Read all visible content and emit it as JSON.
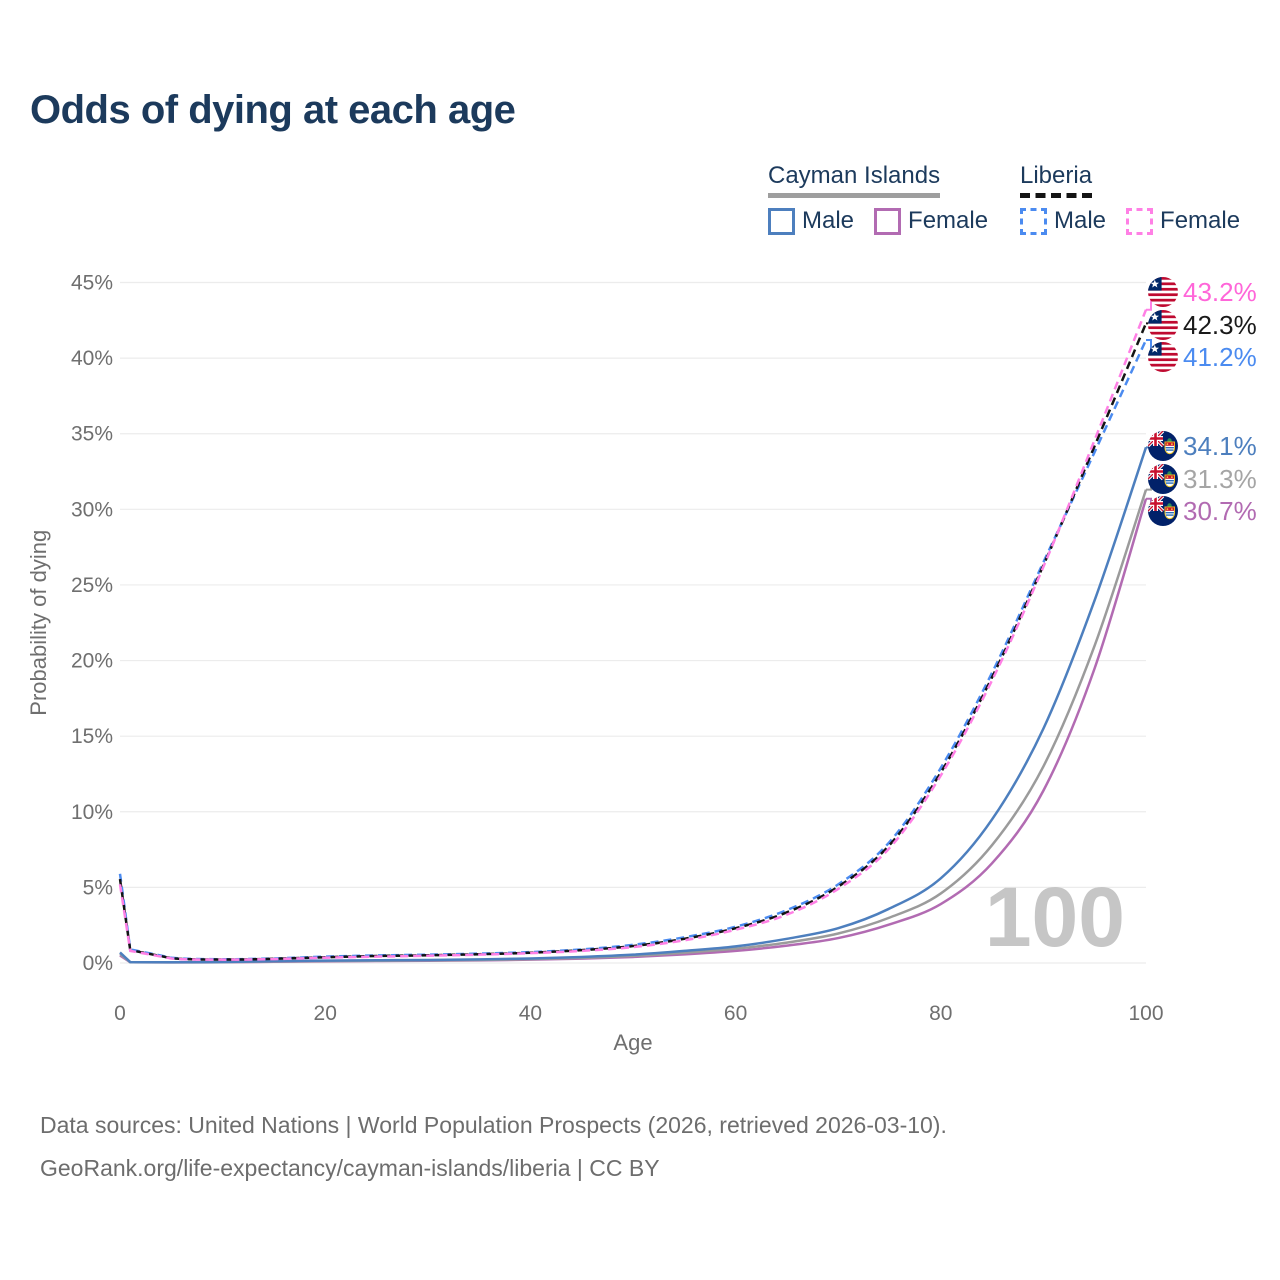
{
  "title": "Odds of dying at each age",
  "legend": {
    "groups": [
      {
        "label": "Cayman Islands",
        "line_style": "solid",
        "line_color": "#9e9e9e",
        "items": [
          {
            "label": "Male",
            "color": "#4d7fbe"
          },
          {
            "label": "Female",
            "color": "#b26bb2"
          }
        ]
      },
      {
        "label": "Liberia",
        "line_style": "dashed",
        "line_color": "#141414",
        "items": [
          {
            "label": "Male",
            "color": "#4b8bf0"
          },
          {
            "label": "Female",
            "color": "#ff80e5"
          }
        ]
      }
    ]
  },
  "chart_data": {
    "type": "line",
    "title": "Odds of dying at each age",
    "xlabel": "Age",
    "ylabel": "Probability of dying",
    "xlim": [
      0,
      100
    ],
    "ylim": [
      0,
      45
    ],
    "x_ticks": [
      0,
      20,
      40,
      60,
      80,
      100
    ],
    "y_tick_values": [
      0,
      5,
      10,
      15,
      20,
      25,
      30,
      35,
      40,
      45
    ],
    "y_tick_labels": [
      "0%",
      "5%",
      "10%",
      "15%",
      "20%",
      "25%",
      "30%",
      "35%",
      "40%",
      "45%"
    ],
    "grid": "horizontal",
    "legend_position": "top-right",
    "watermark_age": "100",
    "ages": [
      0,
      1,
      5,
      10,
      15,
      20,
      25,
      30,
      35,
      40,
      45,
      50,
      55,
      60,
      65,
      70,
      75,
      80,
      85,
      90,
      95,
      100
    ],
    "series": [
      {
        "name": "Cayman Islands Female",
        "country": "Cayman Islands",
        "sex": "Female",
        "color": "#b26bb2",
        "dashed": false,
        "values": [
          0.5,
          0.05,
          0.04,
          0.05,
          0.08,
          0.11,
          0.13,
          0.15,
          0.17,
          0.22,
          0.29,
          0.4,
          0.57,
          0.8,
          1.15,
          1.65,
          2.55,
          3.9,
          6.6,
          11.4,
          19.5,
          30.7
        ],
        "end_label": "30.7%"
      },
      {
        "name": "Cayman Islands Both sexes",
        "country": "Cayman Islands",
        "sex": "Both",
        "color": "#9b9b9b",
        "dashed": false,
        "values": [
          0.6,
          0.05,
          0.04,
          0.06,
          0.1,
          0.13,
          0.15,
          0.17,
          0.2,
          0.26,
          0.34,
          0.47,
          0.68,
          0.95,
          1.35,
          1.95,
          3.0,
          4.6,
          7.8,
          13.0,
          21.0,
          31.3
        ],
        "end_label": "31.3%"
      },
      {
        "name": "Cayman Islands Male",
        "country": "Cayman Islands",
        "sex": "Male",
        "color": "#4d7fbe",
        "dashed": false,
        "values": [
          0.7,
          0.06,
          0.05,
          0.07,
          0.12,
          0.16,
          0.18,
          0.2,
          0.24,
          0.3,
          0.4,
          0.55,
          0.8,
          1.1,
          1.6,
          2.3,
          3.6,
          5.6,
          9.5,
          15.5,
          24.0,
          34.1
        ],
        "end_label": "34.1%"
      },
      {
        "name": "Liberia Male",
        "country": "Liberia",
        "sex": "Male",
        "color": "#4b8bf0",
        "dashed": true,
        "values": [
          5.9,
          0.9,
          0.35,
          0.25,
          0.3,
          0.42,
          0.5,
          0.55,
          0.62,
          0.72,
          0.9,
          1.2,
          1.7,
          2.4,
          3.5,
          5.2,
          8.0,
          12.9,
          19.2,
          26.5,
          33.8,
          41.2
        ],
        "end_label": "41.2%"
      },
      {
        "name": "Liberia Both sexes",
        "country": "Liberia",
        "sex": "Both",
        "color": "#141414",
        "dashed": true,
        "values": [
          5.55,
          0.85,
          0.32,
          0.23,
          0.28,
          0.38,
          0.46,
          0.51,
          0.58,
          0.68,
          0.85,
          1.12,
          1.6,
          2.3,
          3.35,
          5.05,
          7.8,
          12.6,
          18.9,
          26.3,
          34.2,
          42.3
        ],
        "end_label": "42.3%"
      },
      {
        "name": "Liberia Female",
        "country": "Liberia",
        "sex": "Female",
        "color": "#ff80e5",
        "dashed": true,
        "values": [
          5.2,
          0.8,
          0.3,
          0.22,
          0.26,
          0.35,
          0.42,
          0.48,
          0.55,
          0.65,
          0.8,
          1.05,
          1.5,
          2.2,
          3.2,
          4.9,
          7.6,
          12.4,
          18.7,
          26.2,
          34.6,
          43.2
        ],
        "end_label": "43.2%"
      }
    ]
  },
  "end_labels": [
    {
      "value": "43.2%",
      "color": "#ff66d9",
      "flag": "liberia"
    },
    {
      "value": "42.3%",
      "color": "#1a1a1a",
      "flag": "liberia"
    },
    {
      "value": "41.2%",
      "color": "#4b8bf0",
      "flag": "liberia"
    },
    {
      "value": "34.1%",
      "color": "#4d7fbe",
      "flag": "cayman"
    },
    {
      "value": "31.3%",
      "color": "#a5a5a5",
      "flag": "cayman"
    },
    {
      "value": "30.7%",
      "color": "#b26bb2",
      "flag": "cayman"
    }
  ],
  "axis_colors": {
    "tick": "#6f6f6f",
    "grid": "#ececec",
    "watermark": "#c6c6c6"
  },
  "source": {
    "line1": "Data sources: United Nations | World Population Prospects (2026, retrieved 2026-03-10).",
    "line2": "GeoRank.org/life-expectancy/cayman-islands/liberia | CC BY"
  }
}
